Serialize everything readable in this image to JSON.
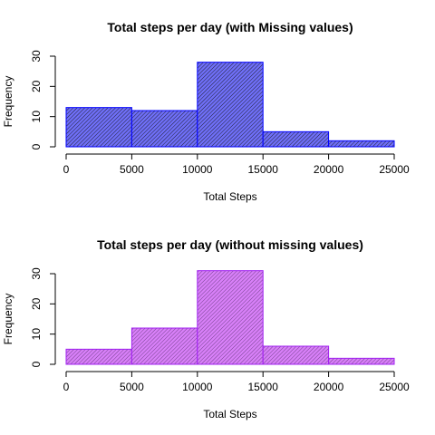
{
  "chart_data": [
    {
      "type": "bar",
      "title": "Total steps per day (with Missing values)",
      "xlabel": "Total Steps",
      "ylabel": "Frequency",
      "bins": [
        [
          0,
          5000
        ],
        [
          5000,
          10000
        ],
        [
          10000,
          15000
        ],
        [
          15000,
          20000
        ],
        [
          20000,
          25000
        ]
      ],
      "values": [
        13,
        12,
        28,
        5,
        2
      ],
      "xlim": [
        0,
        25000
      ],
      "ylim": [
        0,
        30
      ],
      "xticks": [
        0,
        5000,
        10000,
        15000,
        20000,
        25000
      ],
      "yticks": [
        0,
        10,
        20,
        30
      ],
      "fill_color": "#6f6ff7",
      "border_color": "#0000ff",
      "hatch": "diagonal",
      "grid": false
    },
    {
      "type": "bar",
      "title": "Total steps per day (without missing values)",
      "xlabel": "Total Steps",
      "ylabel": "Frequency",
      "bins": [
        [
          0,
          5000
        ],
        [
          5000,
          10000
        ],
        [
          10000,
          15000
        ],
        [
          15000,
          20000
        ],
        [
          20000,
          25000
        ]
      ],
      "values": [
        5,
        12,
        31,
        6,
        2
      ],
      "xlim": [
        0,
        25000
      ],
      "ylim": [
        0,
        30
      ],
      "xticks": [
        0,
        5000,
        10000,
        15000,
        20000,
        25000
      ],
      "yticks": [
        0,
        10,
        20,
        30
      ],
      "fill_color": "#d880f8",
      "border_color": "#a020f0",
      "hatch": "diagonal",
      "grid": false
    }
  ]
}
